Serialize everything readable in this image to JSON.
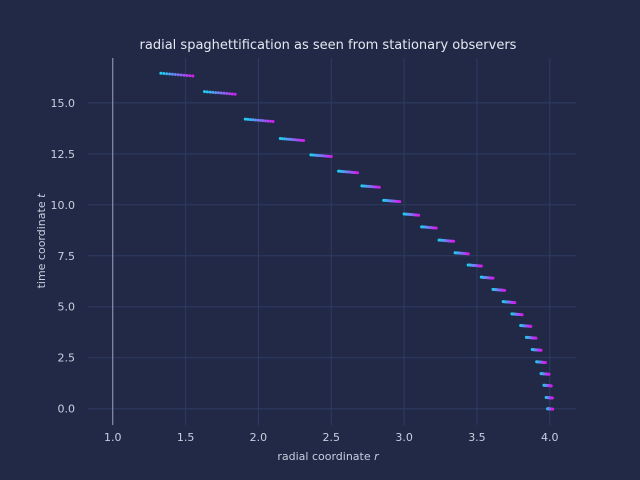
{
  "chart_data": {
    "type": "scatter",
    "title": "radial spaghettification as seen from stationary observers",
    "xlabel": "radial coordinate ",
    "xlabel_var": "r",
    "ylabel": "time coordinate ",
    "ylabel_var": "t",
    "xlim": [
      0.83,
      4.18
    ],
    "ylim": [
      -0.8,
      17.2
    ],
    "xticks": [
      1.0,
      1.5,
      2.0,
      2.5,
      3.0,
      3.5,
      4.0
    ],
    "xtick_labels": [
      "1.0",
      "1.5",
      "2.0",
      "2.5",
      "3.0",
      "3.5",
      "4.0"
    ],
    "yticks": [
      0.0,
      2.5,
      5.0,
      7.5,
      10.0,
      12.5,
      15.0
    ],
    "ytick_labels": [
      "0.0",
      "2.5",
      "5.0",
      "7.5",
      "10.0",
      "12.5",
      "15.0"
    ],
    "grid": true,
    "vertical_line_x": 1.0,
    "color_start": "#19d3f3",
    "color_end": "#d020f0",
    "points_per_group": 12,
    "groups": [
      {
        "t": 0.0,
        "r_start": 3.985,
        "r_end": 4.02
      },
      {
        "t": 0.55,
        "r_start": 3.975,
        "r_end": 4.018
      },
      {
        "t": 1.15,
        "r_start": 3.96,
        "r_end": 4.01
      },
      {
        "t": 1.72,
        "r_start": 3.94,
        "r_end": 3.995
      },
      {
        "t": 2.3,
        "r_start": 3.91,
        "r_end": 3.97
      },
      {
        "t": 2.9,
        "r_start": 3.88,
        "r_end": 3.94
      },
      {
        "t": 3.5,
        "r_start": 3.84,
        "r_end": 3.905
      },
      {
        "t": 4.08,
        "r_start": 3.8,
        "r_end": 3.87
      },
      {
        "t": 4.65,
        "r_start": 3.74,
        "r_end": 3.81
      },
      {
        "t": 5.25,
        "r_start": 3.68,
        "r_end": 3.76
      },
      {
        "t": 5.85,
        "r_start": 3.61,
        "r_end": 3.69
      },
      {
        "t": 6.45,
        "r_start": 3.53,
        "r_end": 3.61
      },
      {
        "t": 7.05,
        "r_start": 3.44,
        "r_end": 3.53
      },
      {
        "t": 7.65,
        "r_start": 3.35,
        "r_end": 3.44
      },
      {
        "t": 8.27,
        "r_start": 3.24,
        "r_end": 3.34
      },
      {
        "t": 8.92,
        "r_start": 3.12,
        "r_end": 3.22
      },
      {
        "t": 9.55,
        "r_start": 3.0,
        "r_end": 3.1
      },
      {
        "t": 10.22,
        "r_start": 2.86,
        "r_end": 2.97
      },
      {
        "t": 10.93,
        "r_start": 2.71,
        "r_end": 2.83
      },
      {
        "t": 11.65,
        "r_start": 2.55,
        "r_end": 2.68
      },
      {
        "t": 12.45,
        "r_start": 2.36,
        "r_end": 2.5
      },
      {
        "t": 13.25,
        "r_start": 2.15,
        "r_end": 2.31
      },
      {
        "t": 14.2,
        "r_start": 1.91,
        "r_end": 2.1
      },
      {
        "t": 15.55,
        "r_start": 1.63,
        "r_end": 1.84
      },
      {
        "t": 16.45,
        "r_start": 1.33,
        "r_end": 1.55
      }
    ]
  }
}
